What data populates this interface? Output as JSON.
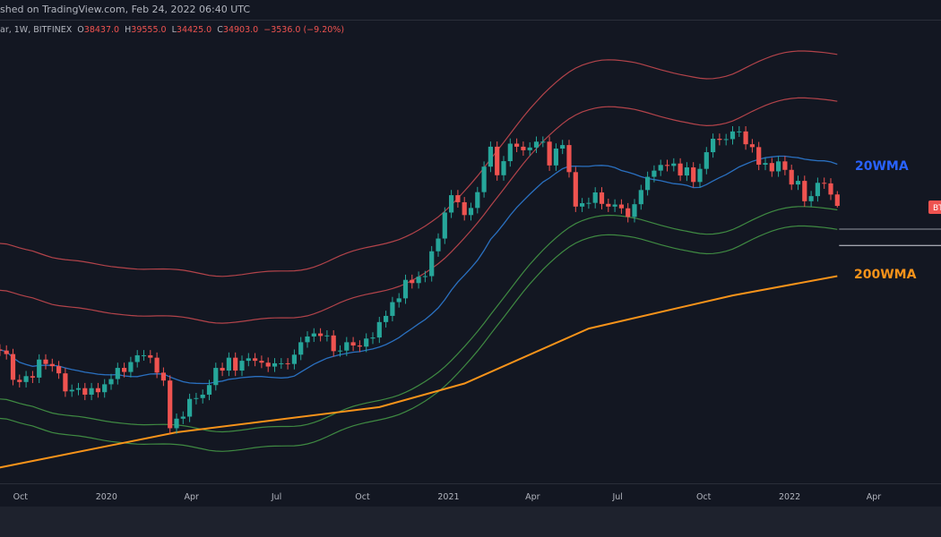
{
  "header": {
    "published": "shed on TradingView.com, Feb 24, 2022 06:40 UTC",
    "symbol": "ar, 1W, BITFINEX",
    "open_label": "O",
    "open": "38437.0",
    "high_label": "H",
    "high": "39555.0",
    "low_label": "L",
    "low": "34425.0",
    "close_label": "C",
    "close": "34903.0",
    "change": "−3536.0 (−9.20%)"
  },
  "colors": {
    "background": "#131722",
    "up": "#26a69a",
    "down": "#ef5350",
    "wma20": "#2962ff",
    "wma200": "#f7931a",
    "upper_bands": "#b2434a",
    "lower_bands": "#3f8a42"
  },
  "chart_data": {
    "type": "candlestick",
    "scale": "log",
    "grid": false,
    "x_tick_labels": [
      {
        "date": "2019-10-01",
        "label": "Oct"
      },
      {
        "date": "2020-01-01",
        "label": "2020"
      },
      {
        "date": "2020-04-01",
        "label": "Apr"
      },
      {
        "date": "2020-07-01",
        "label": "Jul"
      },
      {
        "date": "2020-10-01",
        "label": "Oct"
      },
      {
        "date": "2021-01-01",
        "label": "2021"
      },
      {
        "date": "2021-04-01",
        "label": "Apr"
      },
      {
        "date": "2021-07-01",
        "label": "Jul"
      },
      {
        "date": "2021-10-01",
        "label": "Oct"
      },
      {
        "date": "2022-01-01",
        "label": "2022"
      },
      {
        "date": "2022-04-01",
        "label": "Apr"
      }
    ],
    "first_week": "2019-09-02",
    "weekly_closes": [
      10400,
      10300,
      10000,
      8050,
      7900,
      8300,
      8200,
      9550,
      9200,
      9030,
      8500,
      7300,
      7400,
      7500,
      7100,
      7500,
      7250,
      7750,
      8100,
      8900,
      8600,
      9350,
      9900,
      9900,
      9700,
      8550,
      8000,
      5350,
      5800,
      5900,
      6850,
      6900,
      7100,
      7700,
      8900,
      8700,
      9700,
      8700,
      9450,
      9650,
      9450,
      9300,
      9000,
      9250,
      9250,
      9200,
      9950,
      11050,
      11600,
      11900,
      11650,
      11700,
      10250,
      10300,
      11050,
      10750,
      10650,
      11400,
      11500,
      13100,
      13800,
      15500,
      16000,
      18700,
      18200,
      19200,
      19300,
      23800,
      26500,
      33000,
      38200,
      36000,
      32300,
      34300,
      39200,
      48600,
      57500,
      45200,
      50900,
      59000,
      57500,
      55800,
      57100,
      60000,
      60000,
      49100,
      56600,
      58300,
      46400,
      34700,
      35700,
      35800,
      39100,
      35500,
      34700,
      35300,
      34200,
      31800,
      35400,
      39900,
      44600,
      47000,
      49300,
      48900,
      49900,
      45100,
      48300,
      42700,
      47700,
      54900,
      61500,
      60900,
      61300,
      65400,
      65400,
      58700,
      57300,
      49400,
      50100,
      46700,
      50800,
      47300,
      41800,
      43100,
      36300,
      37900,
      42400,
      42200,
      38400,
      34903
    ],
    "last_candle": {
      "open": 38437.0,
      "high": 39555.0,
      "low": 34425.0,
      "close": 34903.0
    },
    "series": [
      {
        "name": "20WMA",
        "label": "20WMA"
      },
      {
        "name": "200WMA",
        "label": "200WMA",
        "points": [
          {
            "date": "2019-09-02",
            "value": 3800
          },
          {
            "date": "2020-03-16",
            "value": 5170
          },
          {
            "date": "2020-10-19",
            "value": 6390
          },
          {
            "date": "2021-01-18",
            "value": 7800
          },
          {
            "date": "2021-05-31",
            "value": 12400
          },
          {
            "date": "2021-11-01",
            "value": 16400
          },
          {
            "date": "2022-02-21",
            "value": 19300
          }
        ]
      }
    ],
    "horizontal_levels": [
      28700,
      25000
    ],
    "price_tag": "BT"
  }
}
